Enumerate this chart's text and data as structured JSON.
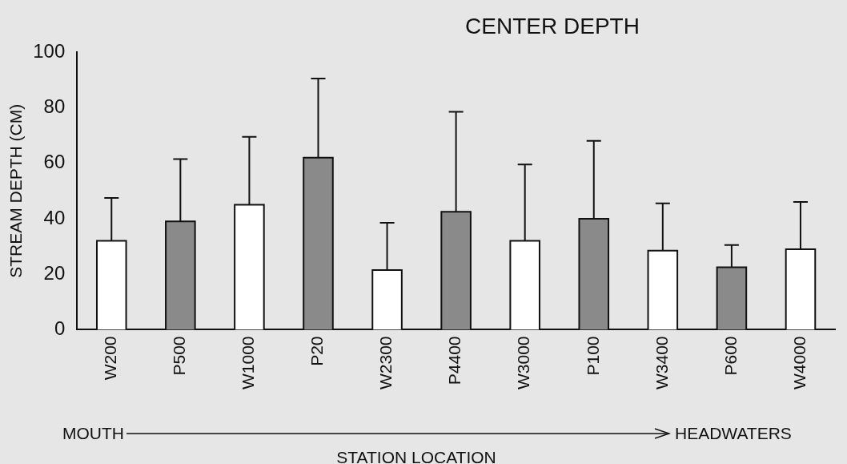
{
  "chart_data": {
    "type": "bar",
    "title": "CENTER DEPTH",
    "xlabel": "STATION LOCATION",
    "ylabel": "STREAM DEPTH (CM)",
    "categories": [
      "W200",
      "P500",
      "W1000",
      "P20",
      "W2300",
      "P4400",
      "W3000",
      "P100",
      "W3400",
      "P600",
      "W4000"
    ],
    "values": [
      32,
      39,
      45,
      62,
      21.5,
      42.5,
      32,
      40,
      28.5,
      22.5,
      29
    ],
    "colors": [
      "#ffffff",
      "#8a8a8a",
      "#ffffff",
      "#8a8a8a",
      "#ffffff",
      "#8a8a8a",
      "#ffffff",
      "#8a8a8a",
      "#ffffff",
      "#8a8a8a",
      "#ffffff"
    ],
    "errors": [
      [
        32,
        47.5
      ],
      [
        39,
        61.5
      ],
      [
        45,
        69.5
      ],
      [
        62,
        90.5
      ],
      [
        21.5,
        38.5
      ],
      [
        42.5,
        78.5
      ],
      [
        32,
        59.5
      ],
      [
        40,
        68
      ],
      [
        28.5,
        45.5
      ],
      [
        22.5,
        30.5
      ],
      [
        29,
        46
      ]
    ],
    "ylim": [
      0,
      100
    ],
    "yticks": [
      0,
      20,
      40,
      60,
      80,
      100
    ],
    "grid": false,
    "legend": false,
    "annotations": [
      "MOUTH",
      "HEADWATERS"
    ]
  }
}
